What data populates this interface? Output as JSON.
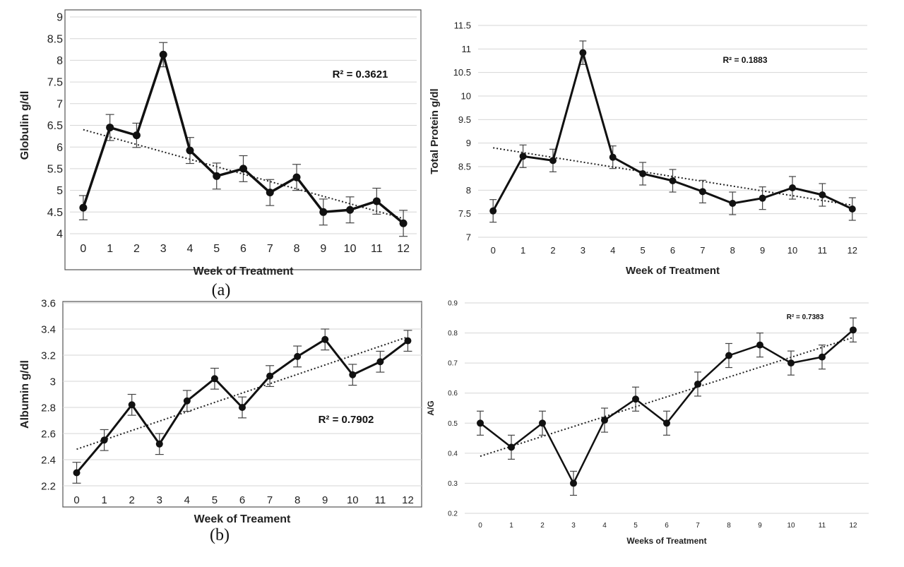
{
  "panel_labels": [
    "(a)",
    "(b)"
  ],
  "chart_data": [
    {
      "type": "line",
      "xlabel": "Week of Treatment",
      "ylabel": "Globulin g/dl",
      "annotation": "R² = 0.3621",
      "x": [
        0,
        1,
        2,
        3,
        4,
        5,
        6,
        7,
        8,
        9,
        10,
        11,
        12
      ],
      "ylim": [
        4,
        9
      ],
      "yticks": [
        4,
        4.5,
        5,
        5.5,
        6,
        6.5,
        7,
        7.5,
        8,
        8.5,
        9
      ],
      "ytick_labels": [
        "4",
        "4.5",
        "5",
        "5.5",
        "6",
        "6.5",
        "7",
        "7.5",
        "8",
        "8.5",
        "9"
      ],
      "grid": true,
      "series": [
        {
          "values": [
            4.6,
            6.45,
            6.27,
            8.13,
            5.92,
            5.33,
            5.5,
            4.95,
            5.3,
            4.5,
            4.55,
            4.75,
            4.24
          ],
          "errors": [
            0.28,
            0.3,
            0.28,
            0.28,
            0.3,
            0.3,
            0.3,
            0.3,
            0.3,
            0.3,
            0.3,
            0.3,
            0.3
          ]
        }
      ],
      "trendline": [
        6.4,
        4.35
      ]
    },
    {
      "type": "line",
      "xlabel": "Week of Treatment",
      "ylabel": "Total Protein g/dl",
      "annotation": "R² = 0.1883",
      "x": [
        0,
        1,
        2,
        3,
        4,
        5,
        6,
        7,
        8,
        9,
        10,
        11,
        12
      ],
      "ylim": [
        7,
        11.5
      ],
      "yticks": [
        7,
        7.5,
        8,
        8.5,
        9,
        9.5,
        10,
        10.5,
        11,
        11.5
      ],
      "ytick_labels": [
        "7",
        "7.5",
        "8",
        "8.5",
        "9",
        "9.5",
        "10",
        "10.5",
        "11",
        "11.5"
      ],
      "grid": true,
      "series": [
        {
          "values": [
            7.56,
            8.72,
            8.63,
            10.92,
            8.7,
            8.35,
            8.2,
            7.97,
            7.72,
            7.83,
            8.05,
            7.9,
            7.6
          ],
          "errors": [
            0.24,
            0.24,
            0.24,
            0.25,
            0.24,
            0.24,
            0.24,
            0.24,
            0.24,
            0.24,
            0.24,
            0.24,
            0.24
          ]
        }
      ],
      "trendline": [
        8.9,
        7.68
      ]
    },
    {
      "type": "line",
      "xlabel": "Week of Treament",
      "ylabel": "Albumin g/dl",
      "annotation": "R² = 0.7902",
      "x": [
        0,
        1,
        2,
        3,
        4,
        5,
        6,
        7,
        8,
        9,
        10,
        11,
        12
      ],
      "ylim": [
        2.2,
        3.6
      ],
      "yticks": [
        2.2,
        2.4,
        2.6,
        2.8,
        3,
        3.2,
        3.4,
        3.6
      ],
      "ytick_labels": [
        "2.2",
        "2.4",
        "2.6",
        "2.8",
        "3",
        "3.2",
        "3.4",
        "3.6"
      ],
      "grid": true,
      "series": [
        {
          "values": [
            2.3,
            2.55,
            2.82,
            2.52,
            2.85,
            3.02,
            2.8,
            3.04,
            3.19,
            3.32,
            3.05,
            3.15,
            3.31
          ],
          "errors": [
            0.08,
            0.08,
            0.08,
            0.08,
            0.08,
            0.08,
            0.08,
            0.08,
            0.08,
            0.08,
            0.08,
            0.08,
            0.08
          ]
        }
      ],
      "trendline": [
        2.48,
        3.34
      ]
    },
    {
      "type": "line",
      "xlabel": "Weeks of Treatment",
      "ylabel": "A/G",
      "annotation": "R² = 0.7383",
      "x": [
        0,
        1,
        2,
        3,
        4,
        5,
        6,
        7,
        8,
        9,
        10,
        11,
        12
      ],
      "ylim": [
        0.2,
        0.9
      ],
      "yticks": [
        0.2,
        0.3,
        0.4,
        0.5,
        0.6,
        0.7,
        0.8,
        0.9
      ],
      "ytick_labels": [
        "0.2",
        "0.3",
        "0.4",
        "0.5",
        "0.6",
        "0.7",
        "0.8",
        "0.9"
      ],
      "grid": true,
      "series": [
        {
          "values": [
            0.5,
            0.42,
            0.5,
            0.3,
            0.51,
            0.58,
            0.5,
            0.63,
            0.725,
            0.76,
            0.7,
            0.72,
            0.81
          ],
          "errors": [
            0.04,
            0.04,
            0.04,
            0.04,
            0.04,
            0.04,
            0.04,
            0.04,
            0.04,
            0.04,
            0.04,
            0.04,
            0.04
          ]
        }
      ],
      "trendline": [
        0.39,
        0.785
      ]
    }
  ]
}
